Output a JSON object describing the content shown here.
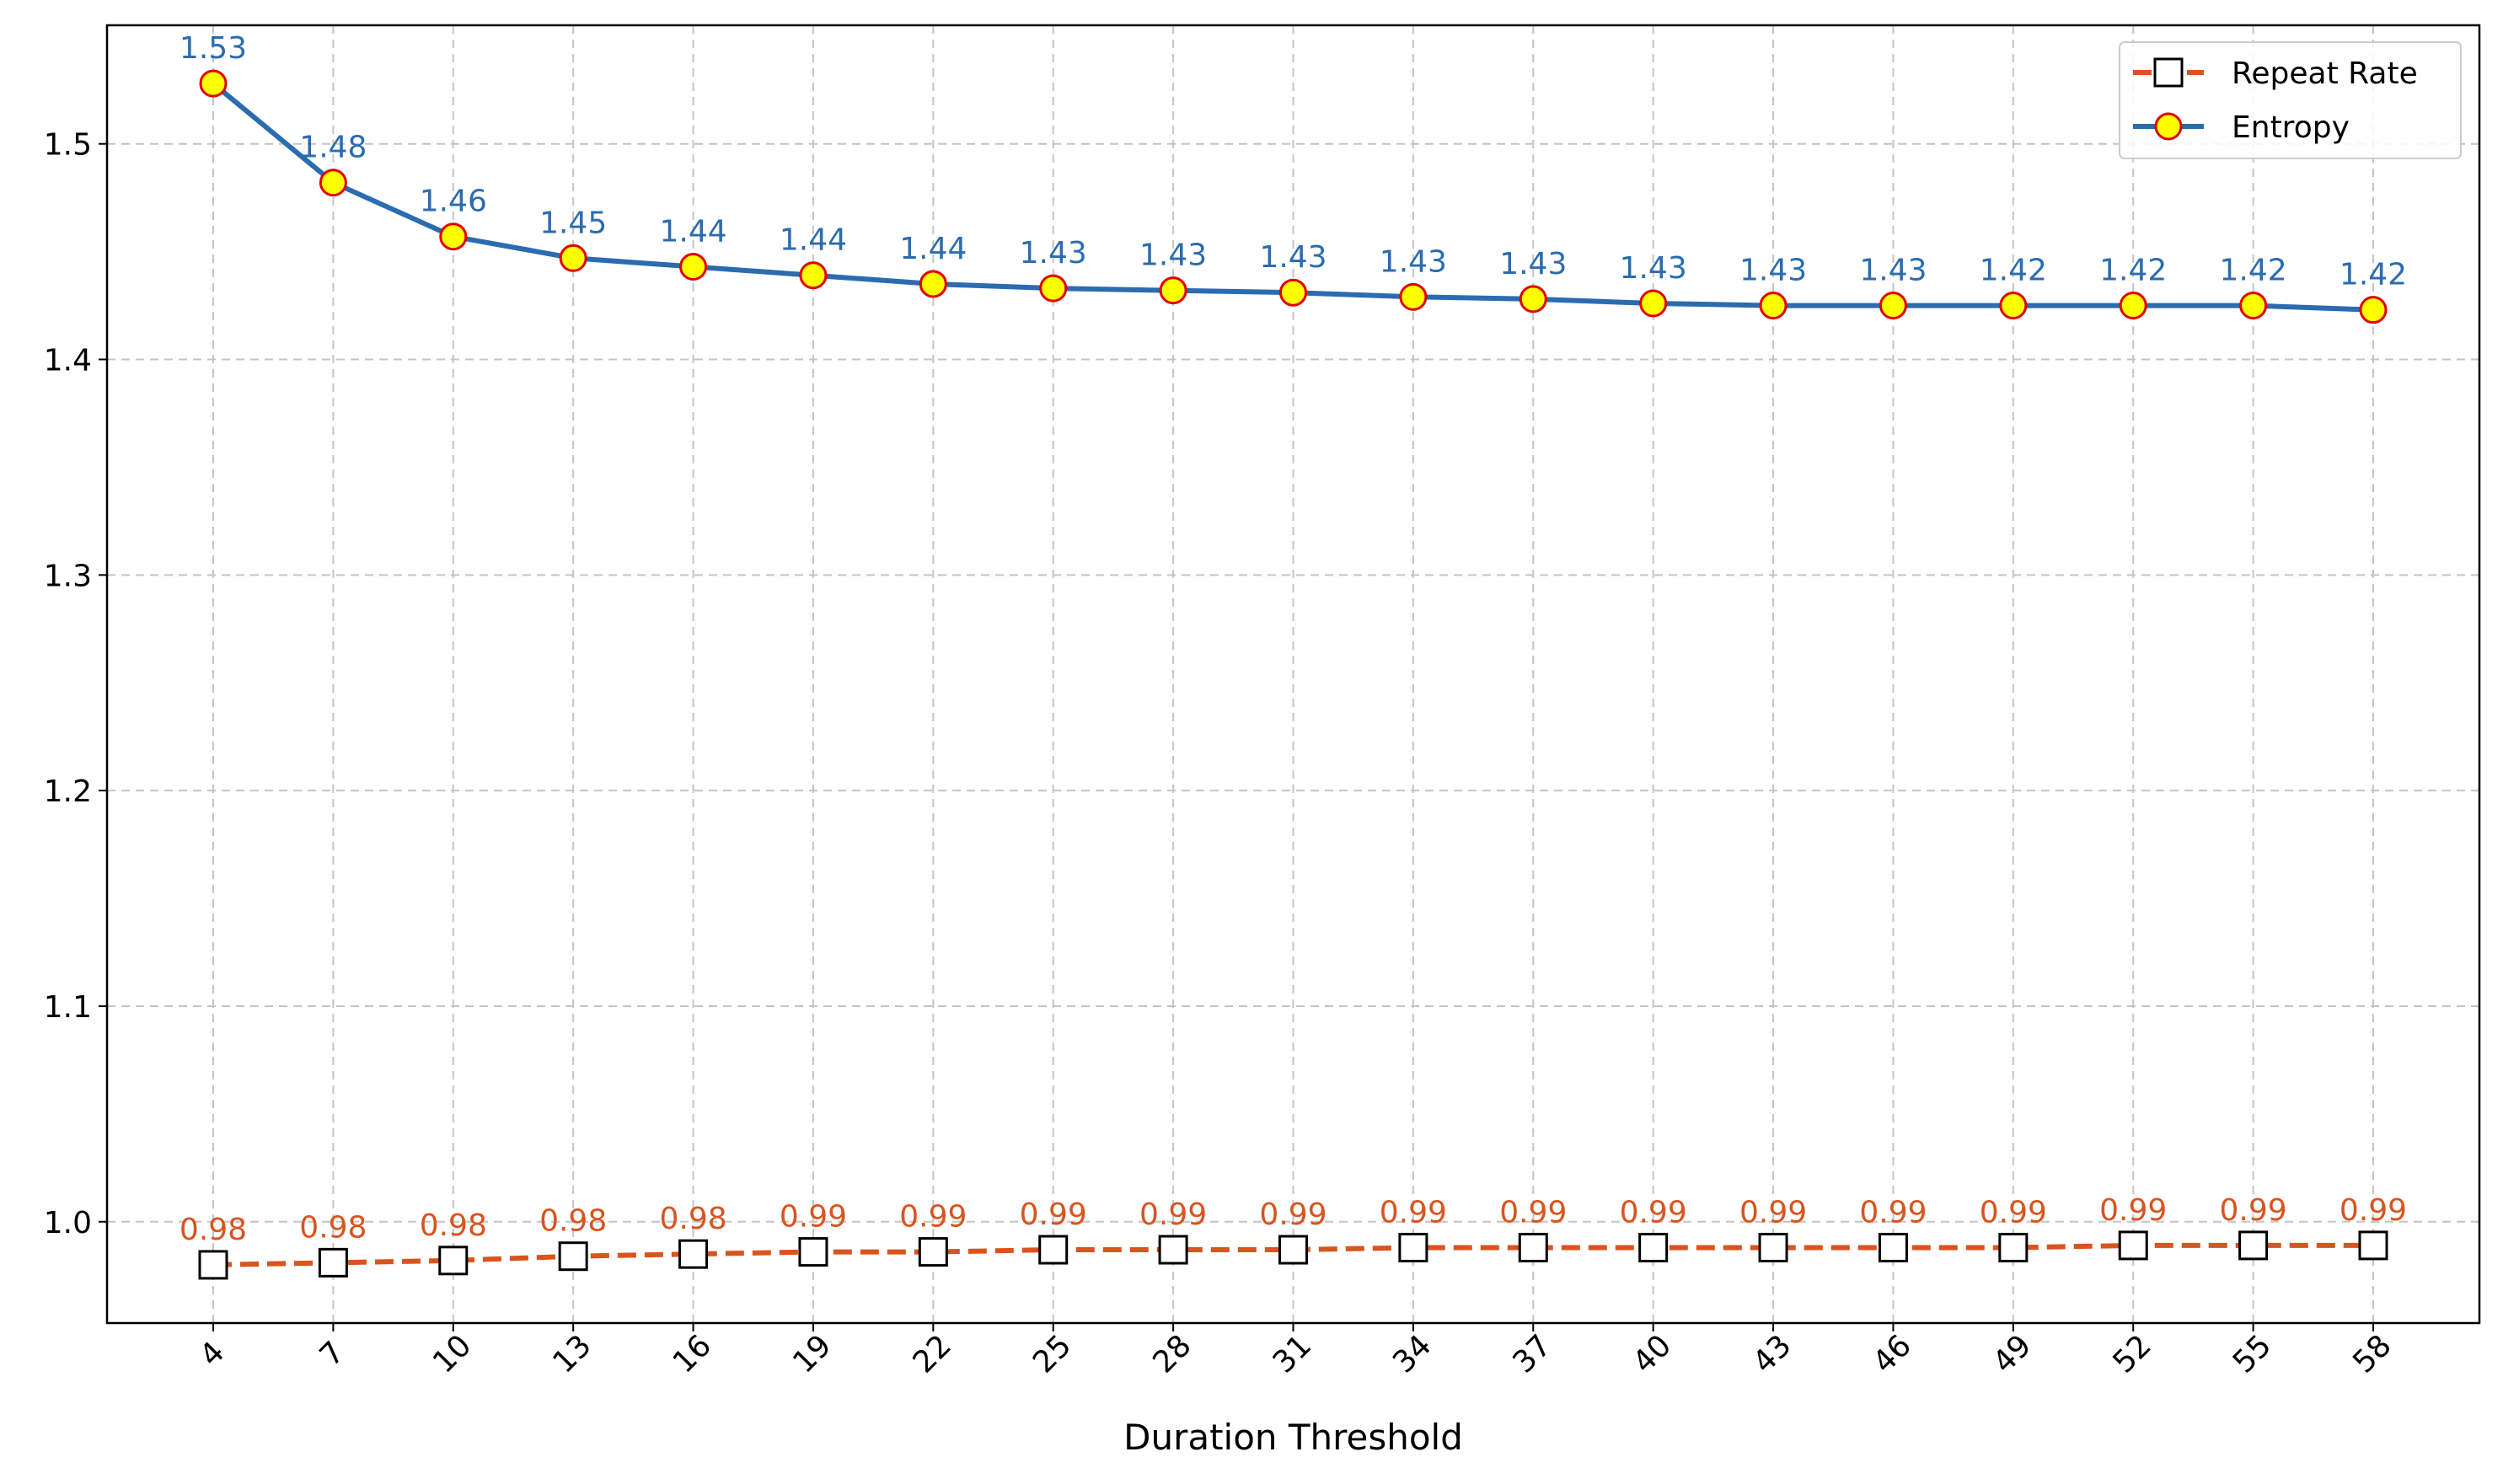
{
  "chart_data": {
    "type": "line",
    "xlabel": "Duration Threshold",
    "x": [
      4,
      7,
      10,
      13,
      16,
      19,
      22,
      25,
      28,
      31,
      34,
      37,
      40,
      43,
      46,
      49,
      52,
      55,
      58
    ],
    "ylim": [
      0.953,
      1.555
    ],
    "yticks": [
      1.0,
      1.1,
      1.2,
      1.3,
      1.4,
      1.5
    ],
    "grid": true,
    "legend_position": "top-right",
    "series": [
      {
        "name": "Repeat Rate",
        "color": "#d9541e",
        "line_style": "dashed",
        "marker": "square",
        "values": [
          0.98,
          0.981,
          0.982,
          0.984,
          0.985,
          0.986,
          0.986,
          0.987,
          0.987,
          0.987,
          0.988,
          0.988,
          0.988,
          0.988,
          0.988,
          0.988,
          0.989,
          0.989,
          0.989
        ],
        "labels": [
          "0.98",
          "0.98",
          "0.98",
          "0.98",
          "0.98",
          "0.99",
          "0.99",
          "0.99",
          "0.99",
          "0.99",
          "0.99",
          "0.99",
          "0.99",
          "0.99",
          "0.99",
          "0.99",
          "0.99",
          "0.99",
          "0.99"
        ]
      },
      {
        "name": "Entropy",
        "color": "#2b6cb0",
        "line_style": "solid",
        "marker": "circle",
        "marker_fill": "#ffff00",
        "marker_edge": "#e00000",
        "values": [
          1.528,
          1.482,
          1.457,
          1.447,
          1.443,
          1.439,
          1.435,
          1.433,
          1.432,
          1.431,
          1.429,
          1.428,
          1.426,
          1.425,
          1.425,
          1.425,
          1.425,
          1.425,
          1.423
        ],
        "labels": [
          "1.53",
          "1.48",
          "1.46",
          "1.45",
          "1.44",
          "1.44",
          "1.44",
          "1.43",
          "1.43",
          "1.43",
          "1.43",
          "1.43",
          "1.43",
          "1.43",
          "1.43",
          "1.42",
          "1.42",
          "1.42",
          "1.42"
        ]
      }
    ]
  }
}
